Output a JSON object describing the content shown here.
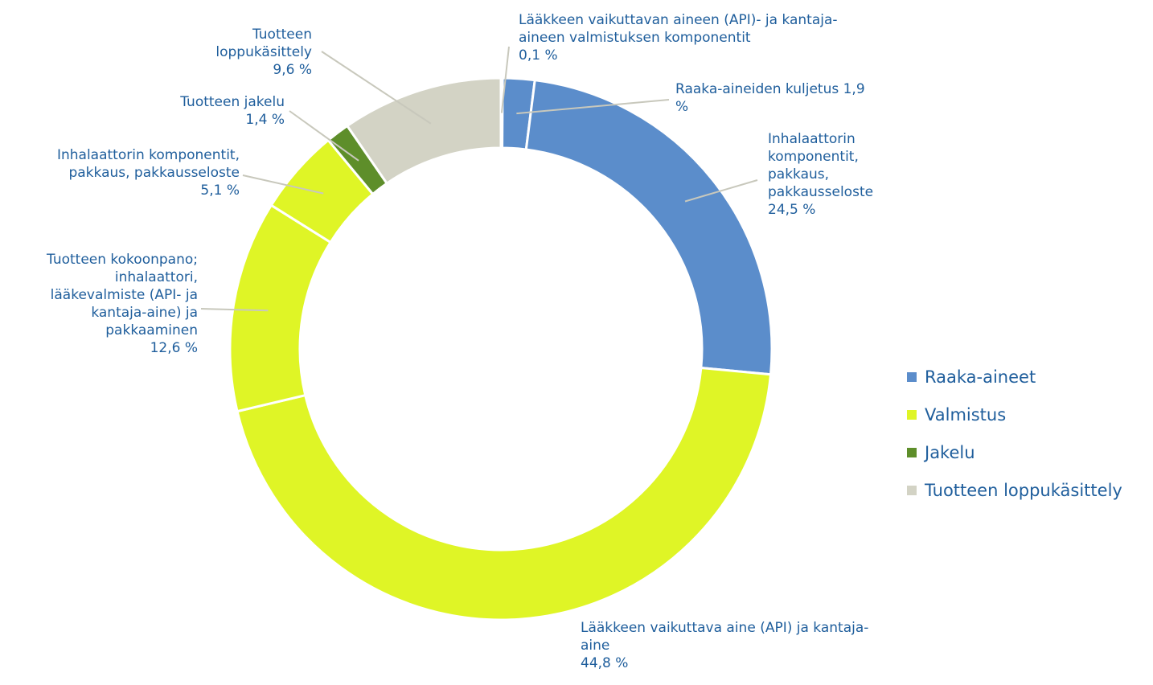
{
  "chart_data": {
    "type": "pie",
    "donut": true,
    "legend_position": "right",
    "slices": [
      {
        "label_lines": [
          "Lääkkeen vaikuttavan aineen (API)- ja kantaja-",
          "aineen valmistuksen komponentit",
          "0,1 %"
        ],
        "value": 0.1,
        "group": "Raaka-aineet",
        "color": "#5b8dcb"
      },
      {
        "label_lines": [
          "Raaka-aineiden kuljetus 1,9",
          "%"
        ],
        "value": 1.9,
        "group": "Raaka-aineet",
        "color": "#5b8dcb"
      },
      {
        "label_lines": [
          "Inhalaattorin",
          "komponentit,",
          "pakkaus,",
          "pakkausseloste",
          "24,5 %"
        ],
        "value": 24.5,
        "group": "Raaka-aineet",
        "color": "#5b8dcb"
      },
      {
        "label_lines": [
          "Lääkkeen vaikuttava aine (API) ja kantaja-",
          "aine",
          "44,8 %"
        ],
        "value": 44.8,
        "group": "Valmistus",
        "color": "#dff526"
      },
      {
        "label_lines": [
          "Tuotteen kokoonpano;",
          "inhalaattori,",
          "lääkevalmiste (API- ja",
          "kantaja-aine) ja",
          "pakkaaminen",
          "12,6 %"
        ],
        "value": 12.6,
        "group": "Valmistus",
        "color": "#dff526"
      },
      {
        "label_lines": [
          "Inhalaattorin komponentit,",
          "pakkaus, pakkausseloste",
          "5,1 %"
        ],
        "value": 5.1,
        "group": "Valmistus",
        "color": "#dff526"
      },
      {
        "label_lines": [
          "Tuotteen jakelu",
          "1,4 %"
        ],
        "value": 1.4,
        "group": "Jakelu",
        "color": "#5e8e2a"
      },
      {
        "label_lines": [
          "Tuotteen",
          "loppukäsittely",
          "9,6 %"
        ],
        "value": 9.6,
        "group": "Tuotteen loppukäsittely",
        "color": "#d3d3c5"
      }
    ],
    "legend": [
      {
        "label": "Raaka-aineet",
        "color": "#5b8dcb"
      },
      {
        "label": "Valmistus",
        "color": "#dff526"
      },
      {
        "label": "Jakelu",
        "color": "#5e8e2a"
      },
      {
        "label": "Tuotteen loppukäsittely",
        "color": "#d3d3c5"
      }
    ]
  }
}
